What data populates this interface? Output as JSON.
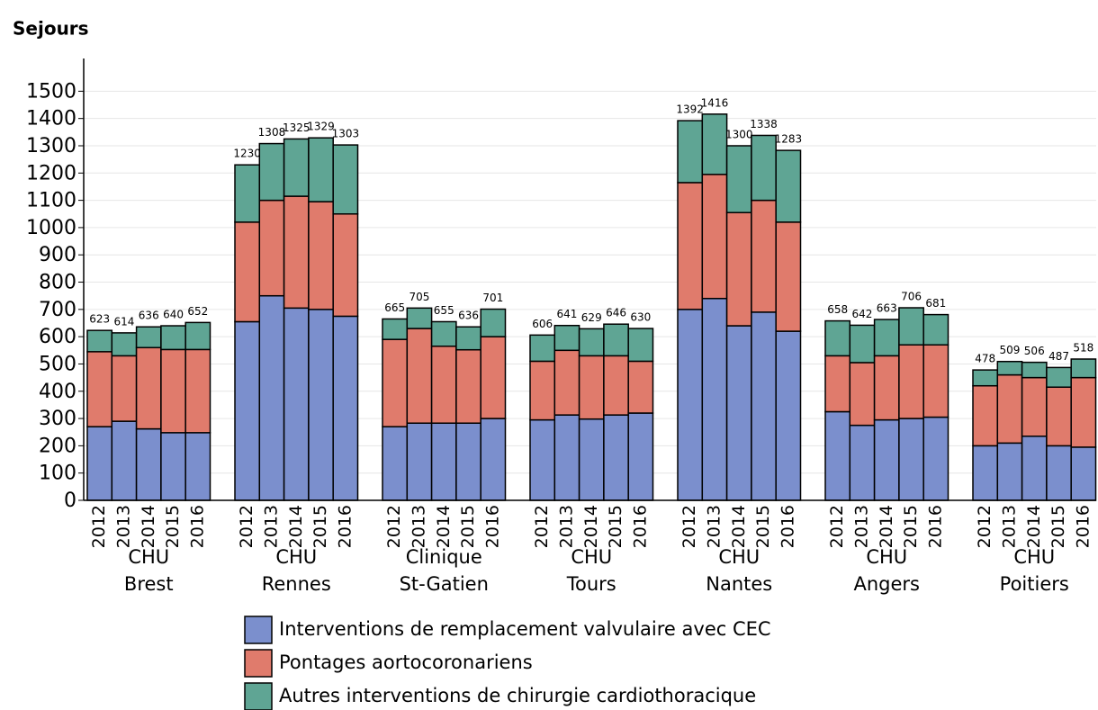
{
  "chart_data": {
    "type": "grouped_stacked_bar",
    "title": "Sejours",
    "ylim": [
      0,
      1620
    ],
    "yticks": [
      0,
      100,
      200,
      300,
      400,
      500,
      600,
      700,
      800,
      900,
      1000,
      1100,
      1200,
      1300,
      1400,
      1500
    ],
    "grid": true,
    "groups": [
      {
        "label": [
          "CHU",
          "Brest"
        ],
        "categories": [
          "2012",
          "2013",
          "2014",
          "2015",
          "2016"
        ],
        "totals": [
          623,
          614,
          636,
          640,
          652
        ]
      },
      {
        "label": [
          "CHU",
          "Rennes"
        ],
        "categories": [
          "2012",
          "2013",
          "2014",
          "2015",
          "2016"
        ],
        "totals": [
          1230,
          1308,
          1325,
          1329,
          1303
        ]
      },
      {
        "label": [
          "Clinique",
          "St-Gatien"
        ],
        "categories": [
          "2012",
          "2013",
          "2014",
          "2015",
          "2016"
        ],
        "totals": [
          665,
          705,
          655,
          636,
          701
        ]
      },
      {
        "label": [
          "CHU",
          "Tours"
        ],
        "categories": [
          "2012",
          "2013",
          "2014",
          "2015",
          "2016"
        ],
        "totals": [
          606,
          641,
          629,
          646,
          630
        ]
      },
      {
        "label": [
          "CHU",
          "Nantes"
        ],
        "categories": [
          "2012",
          "2013",
          "2014",
          "2015",
          "2016"
        ],
        "totals": [
          1392,
          1416,
          1300,
          1338,
          1283
        ]
      },
      {
        "label": [
          "CHU",
          "Angers"
        ],
        "categories": [
          "2012",
          "2013",
          "2014",
          "2015",
          "2016"
        ],
        "totals": [
          658,
          642,
          663,
          706,
          681
        ]
      },
      {
        "label": [
          "CHU",
          "Poitiers"
        ],
        "categories": [
          "2012",
          "2013",
          "2014",
          "2015",
          "2016"
        ],
        "totals": [
          478,
          509,
          506,
          487,
          518
        ]
      }
    ],
    "series": [
      {
        "name": "Interventions de remplacement valvulaire avec CEC",
        "color": "#7b8fcd",
        "values": [
          [
            270,
            290,
            262,
            248,
            248
          ],
          [
            655,
            750,
            705,
            700,
            675
          ],
          [
            270,
            283,
            283,
            283,
            300
          ],
          [
            295,
            313,
            298,
            313,
            320
          ],
          [
            700,
            740,
            640,
            690,
            620
          ],
          [
            325,
            275,
            295,
            300,
            305
          ],
          [
            200,
            210,
            235,
            200,
            195
          ]
        ]
      },
      {
        "name": "Pontages aortocoronariens",
        "color": "#e07b6c",
        "values": [
          [
            275,
            240,
            298,
            305,
            305
          ],
          [
            365,
            350,
            410,
            395,
            375
          ],
          [
            320,
            347,
            282,
            269,
            300
          ],
          [
            215,
            237,
            232,
            217,
            190
          ],
          [
            465,
            455,
            415,
            410,
            400
          ],
          [
            205,
            230,
            235,
            270,
            265
          ],
          [
            220,
            250,
            215,
            215,
            255
          ]
        ]
      },
      {
        "name": "Autres interventions de chirurgie cardiothoracique",
        "color": "#5fa594",
        "values": [
          [
            78,
            84,
            76,
            87,
            99
          ],
          [
            210,
            208,
            210,
            234,
            253
          ],
          [
            75,
            75,
            90,
            84,
            101
          ],
          [
            96,
            91,
            99,
            116,
            120
          ],
          [
            227,
            221,
            245,
            238,
            263
          ],
          [
            128,
            137,
            133,
            136,
            111
          ],
          [
            58,
            49,
            56,
            72,
            68
          ]
        ]
      }
    ]
  }
}
